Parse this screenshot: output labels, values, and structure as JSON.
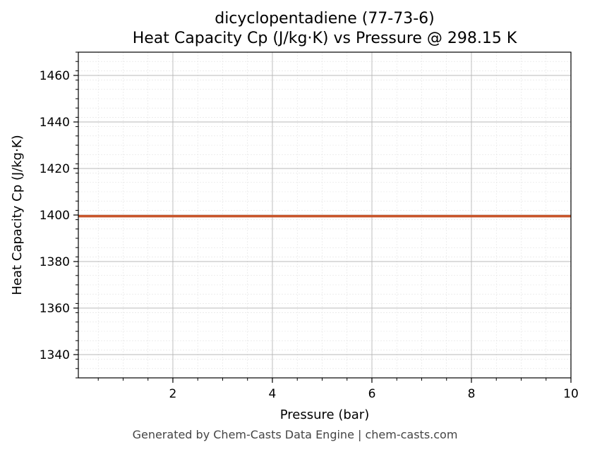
{
  "chart_data": {
    "type": "line",
    "title": "dicyclopentadiene (77-73-6)",
    "subtitle": "Heat Capacity Cp (J/kg·K) vs Pressure @ 298.15 K",
    "xlabel": "Pressure (bar)",
    "ylabel": "Heat Capacity Cp (J/kg·K)",
    "xlim": [
      0.1,
      10
    ],
    "ylim": [
      1330,
      1470
    ],
    "x_ticks": [
      2,
      4,
      6,
      8,
      10
    ],
    "y_ticks": [
      1340,
      1360,
      1380,
      1400,
      1420,
      1440,
      1460
    ],
    "grid": true,
    "series": [
      {
        "x": [
          0.1,
          1,
          2,
          3,
          4,
          5,
          6,
          7,
          8,
          9,
          10
        ],
        "y": [
          1399.5,
          1399.5,
          1399.5,
          1399.5,
          1399.5,
          1399.5,
          1399.5,
          1399.5,
          1399.5,
          1399.5,
          1399.5
        ],
        "color": "#c8552a"
      }
    ]
  },
  "footer": "Generated by Chem-Casts Data Engine | chem-casts.com"
}
